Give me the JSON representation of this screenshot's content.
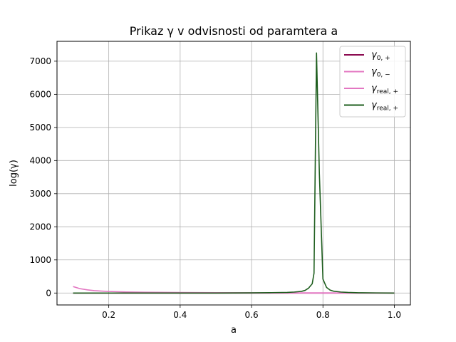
{
  "chart_data": {
    "type": "line",
    "title": "Prikaz γ v odvisnosti od paramtera a",
    "xlabel": "a",
    "ylabel": "log(γ)",
    "xlim": [
      0.055,
      1.045
    ],
    "ylim": [
      -360,
      7600
    ],
    "xticks": [
      0.2,
      0.4,
      0.6,
      0.8,
      1.0
    ],
    "xtick_labels": [
      "0.2",
      "0.4",
      "0.6",
      "0.8",
      "1.0"
    ],
    "yticks": [
      0,
      1000,
      2000,
      3000,
      4000,
      5000,
      6000,
      7000
    ],
    "ytick_labels": [
      "0",
      "1000",
      "2000",
      "3000",
      "4000",
      "5000",
      "6000",
      "7000"
    ],
    "grid": true,
    "legend_position": "top-right",
    "series": [
      {
        "name": "γ0, +",
        "legend_base": "γ",
        "legend_sub": "0, +",
        "color": "#8b0a50",
        "x": [
          0.1,
          0.2,
          0.3,
          0.4,
          0.5,
          0.6,
          0.7,
          0.8,
          0.9,
          1.0
        ],
        "y": [
          0,
          0,
          0,
          0,
          0,
          0,
          0,
          0,
          0,
          0
        ]
      },
      {
        "name": "γ0, −",
        "legend_base": "γ",
        "legend_sub": "0, −",
        "color": "#e377c2",
        "x": [
          0.1,
          0.12,
          0.14,
          0.16,
          0.18,
          0.2,
          0.25,
          0.3,
          0.4,
          0.5,
          0.6,
          0.7,
          0.8,
          0.9,
          1.0
        ],
        "y": [
          195,
          130,
          95,
          72,
          58,
          47,
          32,
          24,
          15,
          10,
          7,
          5,
          4,
          3,
          2
        ]
      },
      {
        "name": "γreal, +",
        "legend_base": "γ",
        "legend_sub": "real, +",
        "color": "#e377c2",
        "x": [
          0.1,
          0.2,
          0.3,
          0.4,
          0.5,
          0.6,
          0.7,
          0.8,
          0.9,
          1.0
        ],
        "y": [
          0,
          0,
          0,
          0,
          0,
          0,
          0,
          0,
          0,
          0
        ]
      },
      {
        "name": "γreal, +",
        "legend_base": "γ",
        "legend_sub": "real, +",
        "color": "#1e5e1e",
        "x": [
          0.1,
          0.2,
          0.3,
          0.4,
          0.5,
          0.6,
          0.65,
          0.7,
          0.72,
          0.74,
          0.75,
          0.76,
          0.77,
          0.775,
          0.782,
          0.79,
          0.8,
          0.81,
          0.82,
          0.83,
          0.85,
          0.87,
          0.9,
          0.95,
          1.0
        ],
        "y": [
          0,
          0,
          0,
          0,
          0,
          5,
          10,
          18,
          30,
          50,
          80,
          150,
          280,
          600,
          7250,
          3600,
          420,
          170,
          90,
          55,
          30,
          18,
          8,
          3,
          0
        ]
      }
    ]
  }
}
